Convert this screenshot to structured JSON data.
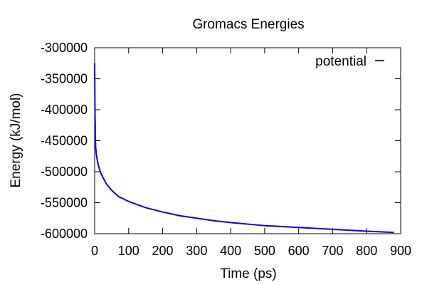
{
  "chart_data": {
    "type": "line",
    "title": "Gromacs Energies",
    "xlabel": "Time (ps)",
    "ylabel": "Energy (kJ/mol)",
    "xlim": [
      0,
      900
    ],
    "ylim": [
      -600000,
      -300000
    ],
    "x_ticks": [
      "0",
      "100",
      "200",
      "300",
      "400",
      "500",
      "600",
      "700",
      "800",
      "900"
    ],
    "y_ticks": [
      "-300000",
      "-350000",
      "-400000",
      "-450000",
      "-500000",
      "-550000",
      "-600000"
    ],
    "grid": false,
    "legend_position": "top-right",
    "series": [
      {
        "name": "potential",
        "color": "#0000ff",
        "x": [
          0,
          1,
          2,
          3,
          5,
          8,
          12,
          18,
          25,
          35,
          50,
          70,
          100,
          150,
          200,
          250,
          300,
          350,
          400,
          500,
          600,
          700,
          800,
          880
        ],
        "y": [
          -325000,
          -400000,
          -440000,
          -460000,
          -472000,
          -482000,
          -492000,
          -502000,
          -510000,
          -520000,
          -530000,
          -540000,
          -548000,
          -558000,
          -565000,
          -571000,
          -575000,
          -579000,
          -582000,
          -587000,
          -590000,
          -593000,
          -596000,
          -598000
        ]
      }
    ]
  }
}
